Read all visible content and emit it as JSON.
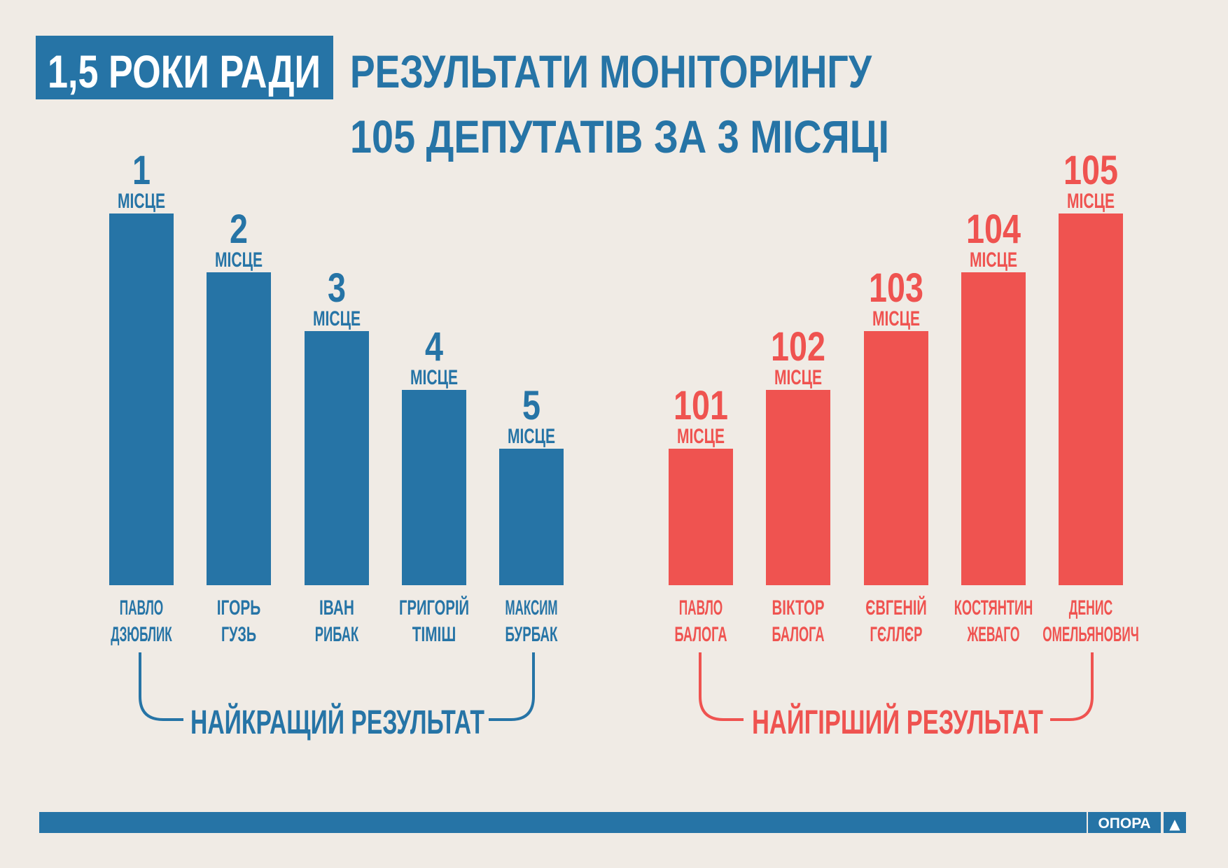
{
  "header": {
    "badge": "1,5 РОКИ РАДИ",
    "title_line1": "РЕЗУЛЬТАТИ МОНІТОРИНГУ",
    "title_line2": "105 ДЕПУТАТІВ ЗА 3 МІСЯЦІ"
  },
  "colors": {
    "best": "#2674a6",
    "worst": "#ef5350",
    "background": "#f0ebe5"
  },
  "chart_data": [
    {
      "type": "bar",
      "group_label": "НАЙКРАЩИЙ РЕЗУЛЬТАТ",
      "place_word": "МІСЦЕ",
      "metric": "rank",
      "bar_heights_relative": [
        5,
        4,
        3,
        2,
        1
      ],
      "categories": [
        {
          "rank": "1",
          "first": "ПАВЛО",
          "last": "ДЗЮБЛИК"
        },
        {
          "rank": "2",
          "first": "ІГОРЬ",
          "last": "ГУЗЬ"
        },
        {
          "rank": "3",
          "first": "ІВАН",
          "last": "РИБАК"
        },
        {
          "rank": "4",
          "first": "ГРИГОРІЙ",
          "last": "ТІМІШ"
        },
        {
          "rank": "5",
          "first": "МАКСИМ",
          "last": "БУРБАК"
        }
      ]
    },
    {
      "type": "bar",
      "group_label": "НАЙГІРШИЙ РЕЗУЛЬТАТ",
      "place_word": "МІСЦЕ",
      "metric": "rank",
      "bar_heights_relative": [
        1,
        2,
        3,
        4,
        5
      ],
      "categories": [
        {
          "rank": "101",
          "first": "ПАВЛО",
          "last": "БАЛОГА"
        },
        {
          "rank": "102",
          "first": "ВІКТОР",
          "last": "БАЛОГА"
        },
        {
          "rank": "103",
          "first": "ЄВГЕНІЙ",
          "last": "ГЄЛЛЄР"
        },
        {
          "rank": "104",
          "first": "КОСТЯНТИН",
          "last": "ЖЕВАГО"
        },
        {
          "rank": "105",
          "first": "ДЕНИС",
          "last": "ОМЕЛЬЯНОВИЧ"
        }
      ]
    }
  ],
  "footer": {
    "logo_text": "ОПОРА",
    "logo_symbol": "▲"
  }
}
